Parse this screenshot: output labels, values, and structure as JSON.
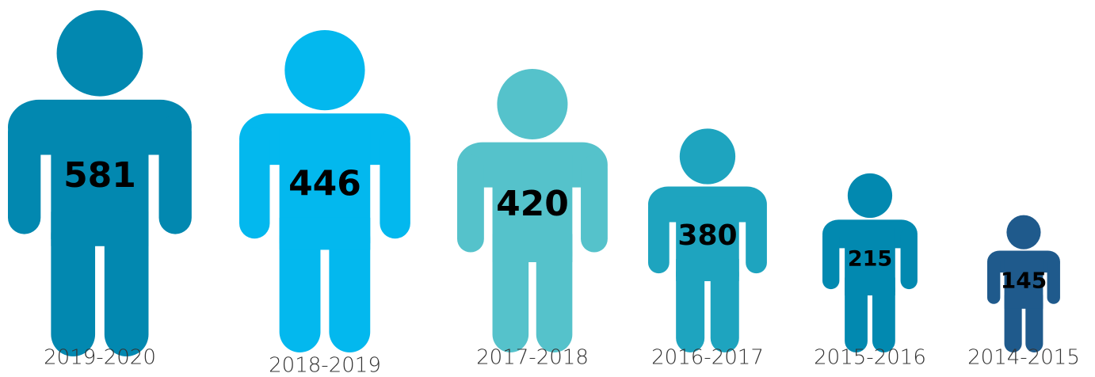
{
  "chart_data": {
    "type": "pictogram",
    "categories": [
      "2019-2020",
      "2018-2019",
      "2017-2018",
      "2016-2017",
      "2015-2016",
      "2014-2015"
    ],
    "values": [
      581,
      446,
      420,
      380,
      215,
      145
    ],
    "colors": [
      "#0288b0",
      "#03b8ee",
      "#55c2cb",
      "#1ea4bf",
      "#0289b0",
      "#1f5a8c"
    ]
  }
}
